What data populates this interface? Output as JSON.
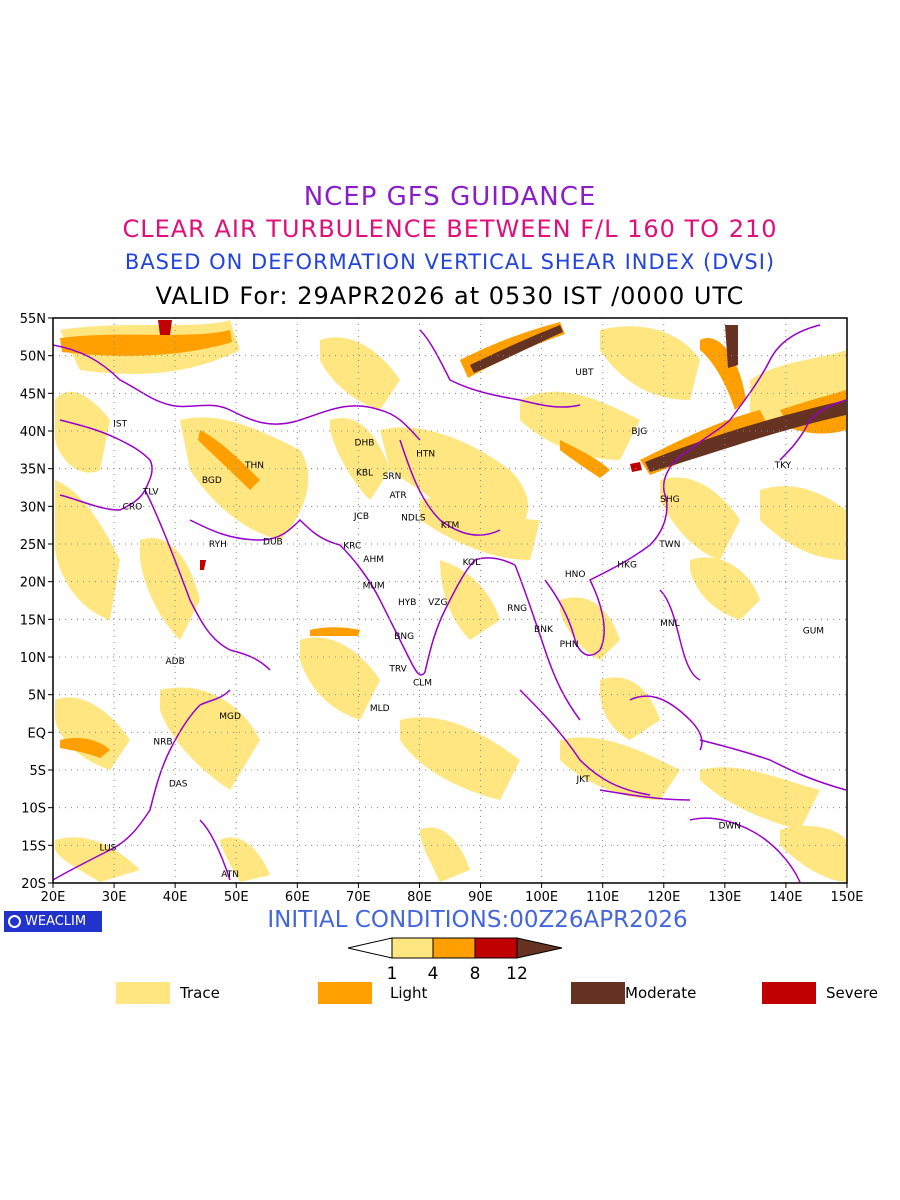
{
  "titles": {
    "line1": "NCEP GFS GUIDANCE",
    "line2": "CLEAR AIR TURBULENCE BETWEEN F/L 160 TO 210",
    "line3": "BASED ON DEFORMATION VERTICAL SHEAR INDEX (DVSI)",
    "line4": "VALID For: 29APR2026 at 0530 IST /0000 UTC"
  },
  "axes": {
    "lon_ticks": [
      "20E",
      "30E",
      "40E",
      "50E",
      "60E",
      "70E",
      "80E",
      "90E",
      "100E",
      "110E",
      "120E",
      "130E",
      "140E",
      "150E"
    ],
    "lat_ticks": [
      "55N",
      "50N",
      "45N",
      "40N",
      "35N",
      "30N",
      "25N",
      "20N",
      "15N",
      "10N",
      "5N",
      "EQ",
      "5S",
      "10S",
      "15S",
      "20S"
    ],
    "lon_range": [
      20,
      150
    ],
    "lat_range": [
      -20,
      55
    ]
  },
  "cities": [
    {
      "code": "IST",
      "lon": 31,
      "lat": 41
    },
    {
      "code": "TLV",
      "lon": 36,
      "lat": 32
    },
    {
      "code": "CRO",
      "lon": 33,
      "lat": 30
    },
    {
      "code": "BGD",
      "lon": 46,
      "lat": 33.5
    },
    {
      "code": "THN",
      "lon": 53,
      "lat": 35.5
    },
    {
      "code": "RYH",
      "lon": 47,
      "lat": 25
    },
    {
      "code": "DUB",
      "lon": 56,
      "lat": 25.3
    },
    {
      "code": "ADB",
      "lon": 40,
      "lat": 9.5
    },
    {
      "code": "MGD",
      "lon": 49,
      "lat": 2.2
    },
    {
      "code": "NRB",
      "lon": 38,
      "lat": -1.2
    },
    {
      "code": "DAS",
      "lon": 40.5,
      "lat": -6.8
    },
    {
      "code": "LUS",
      "lon": 29,
      "lat": -15.3
    },
    {
      "code": "ATN",
      "lon": 49,
      "lat": -18.8
    },
    {
      "code": "DHB",
      "lon": 71,
      "lat": 38.5
    },
    {
      "code": "KBL",
      "lon": 71,
      "lat": 34.5
    },
    {
      "code": "SRN",
      "lon": 75.5,
      "lat": 34
    },
    {
      "code": "ATR",
      "lon": 76.5,
      "lat": 31.5
    },
    {
      "code": "JCB",
      "lon": 70.5,
      "lat": 28.7
    },
    {
      "code": "NDLS",
      "lon": 79,
      "lat": 28.5
    },
    {
      "code": "KRC",
      "lon": 69,
      "lat": 24.8
    },
    {
      "code": "AHM",
      "lon": 72.5,
      "lat": 23
    },
    {
      "code": "MUM",
      "lon": 72.5,
      "lat": 19.5
    },
    {
      "code": "HYB",
      "lon": 78,
      "lat": 17.3
    },
    {
      "code": "VZG",
      "lon": 83,
      "lat": 17.3
    },
    {
      "code": "BNG",
      "lon": 77.5,
      "lat": 12.8
    },
    {
      "code": "TRV",
      "lon": 76.5,
      "lat": 8.5
    },
    {
      "code": "CLM",
      "lon": 80.5,
      "lat": 6.6
    },
    {
      "code": "MLD",
      "lon": 73.5,
      "lat": 3.2
    },
    {
      "code": "HTN",
      "lon": 81,
      "lat": 37
    },
    {
      "code": "KTM",
      "lon": 85,
      "lat": 27.5
    },
    {
      "code": "KOL",
      "lon": 88.5,
      "lat": 22.6
    },
    {
      "code": "RNG",
      "lon": 96,
      "lat": 16.5
    },
    {
      "code": "BNK",
      "lon": 100.3,
      "lat": 13.7
    },
    {
      "code": "PHN",
      "lon": 104.5,
      "lat": 11.7
    },
    {
      "code": "HNO",
      "lon": 105.5,
      "lat": 21
    },
    {
      "code": "HKG",
      "lon": 114,
      "lat": 22.3
    },
    {
      "code": "TWN",
      "lon": 121,
      "lat": 25
    },
    {
      "code": "SHG",
      "lon": 121,
      "lat": 31
    },
    {
      "code": "BJG",
      "lon": 116,
      "lat": 40
    },
    {
      "code": "UBT",
      "lon": 107,
      "lat": 47.8
    },
    {
      "code": "TKY",
      "lon": 139.5,
      "lat": 35.5
    },
    {
      "code": "MNL",
      "lon": 121,
      "lat": 14.5
    },
    {
      "code": "GUM",
      "lon": 144.5,
      "lat": 13.5
    },
    {
      "code": "JKT",
      "lon": 106.8,
      "lat": -6.2
    },
    {
      "code": "DWN",
      "lon": 130.8,
      "lat": -12.4
    }
  ],
  "initial_conditions": "INITIAL CONDITIONS:00Z26APR2026",
  "logo_text": "WEACLIM",
  "colorbar": {
    "ticks": [
      "1",
      "4",
      "8",
      "12"
    ],
    "colors": [
      "#ffffff",
      "#ffe680",
      "#ffa000",
      "#c00000",
      "#663322"
    ]
  },
  "legend": [
    {
      "label": "Trace",
      "color": "#ffe680"
    },
    {
      "label": "Light",
      "color": "#ffa000"
    },
    {
      "label": "Moderate",
      "color": "#663322"
    },
    {
      "label": "Severe",
      "color": "#c00000"
    }
  ],
  "colors": {
    "coastline": "#9900cc",
    "grid": "#888888"
  }
}
